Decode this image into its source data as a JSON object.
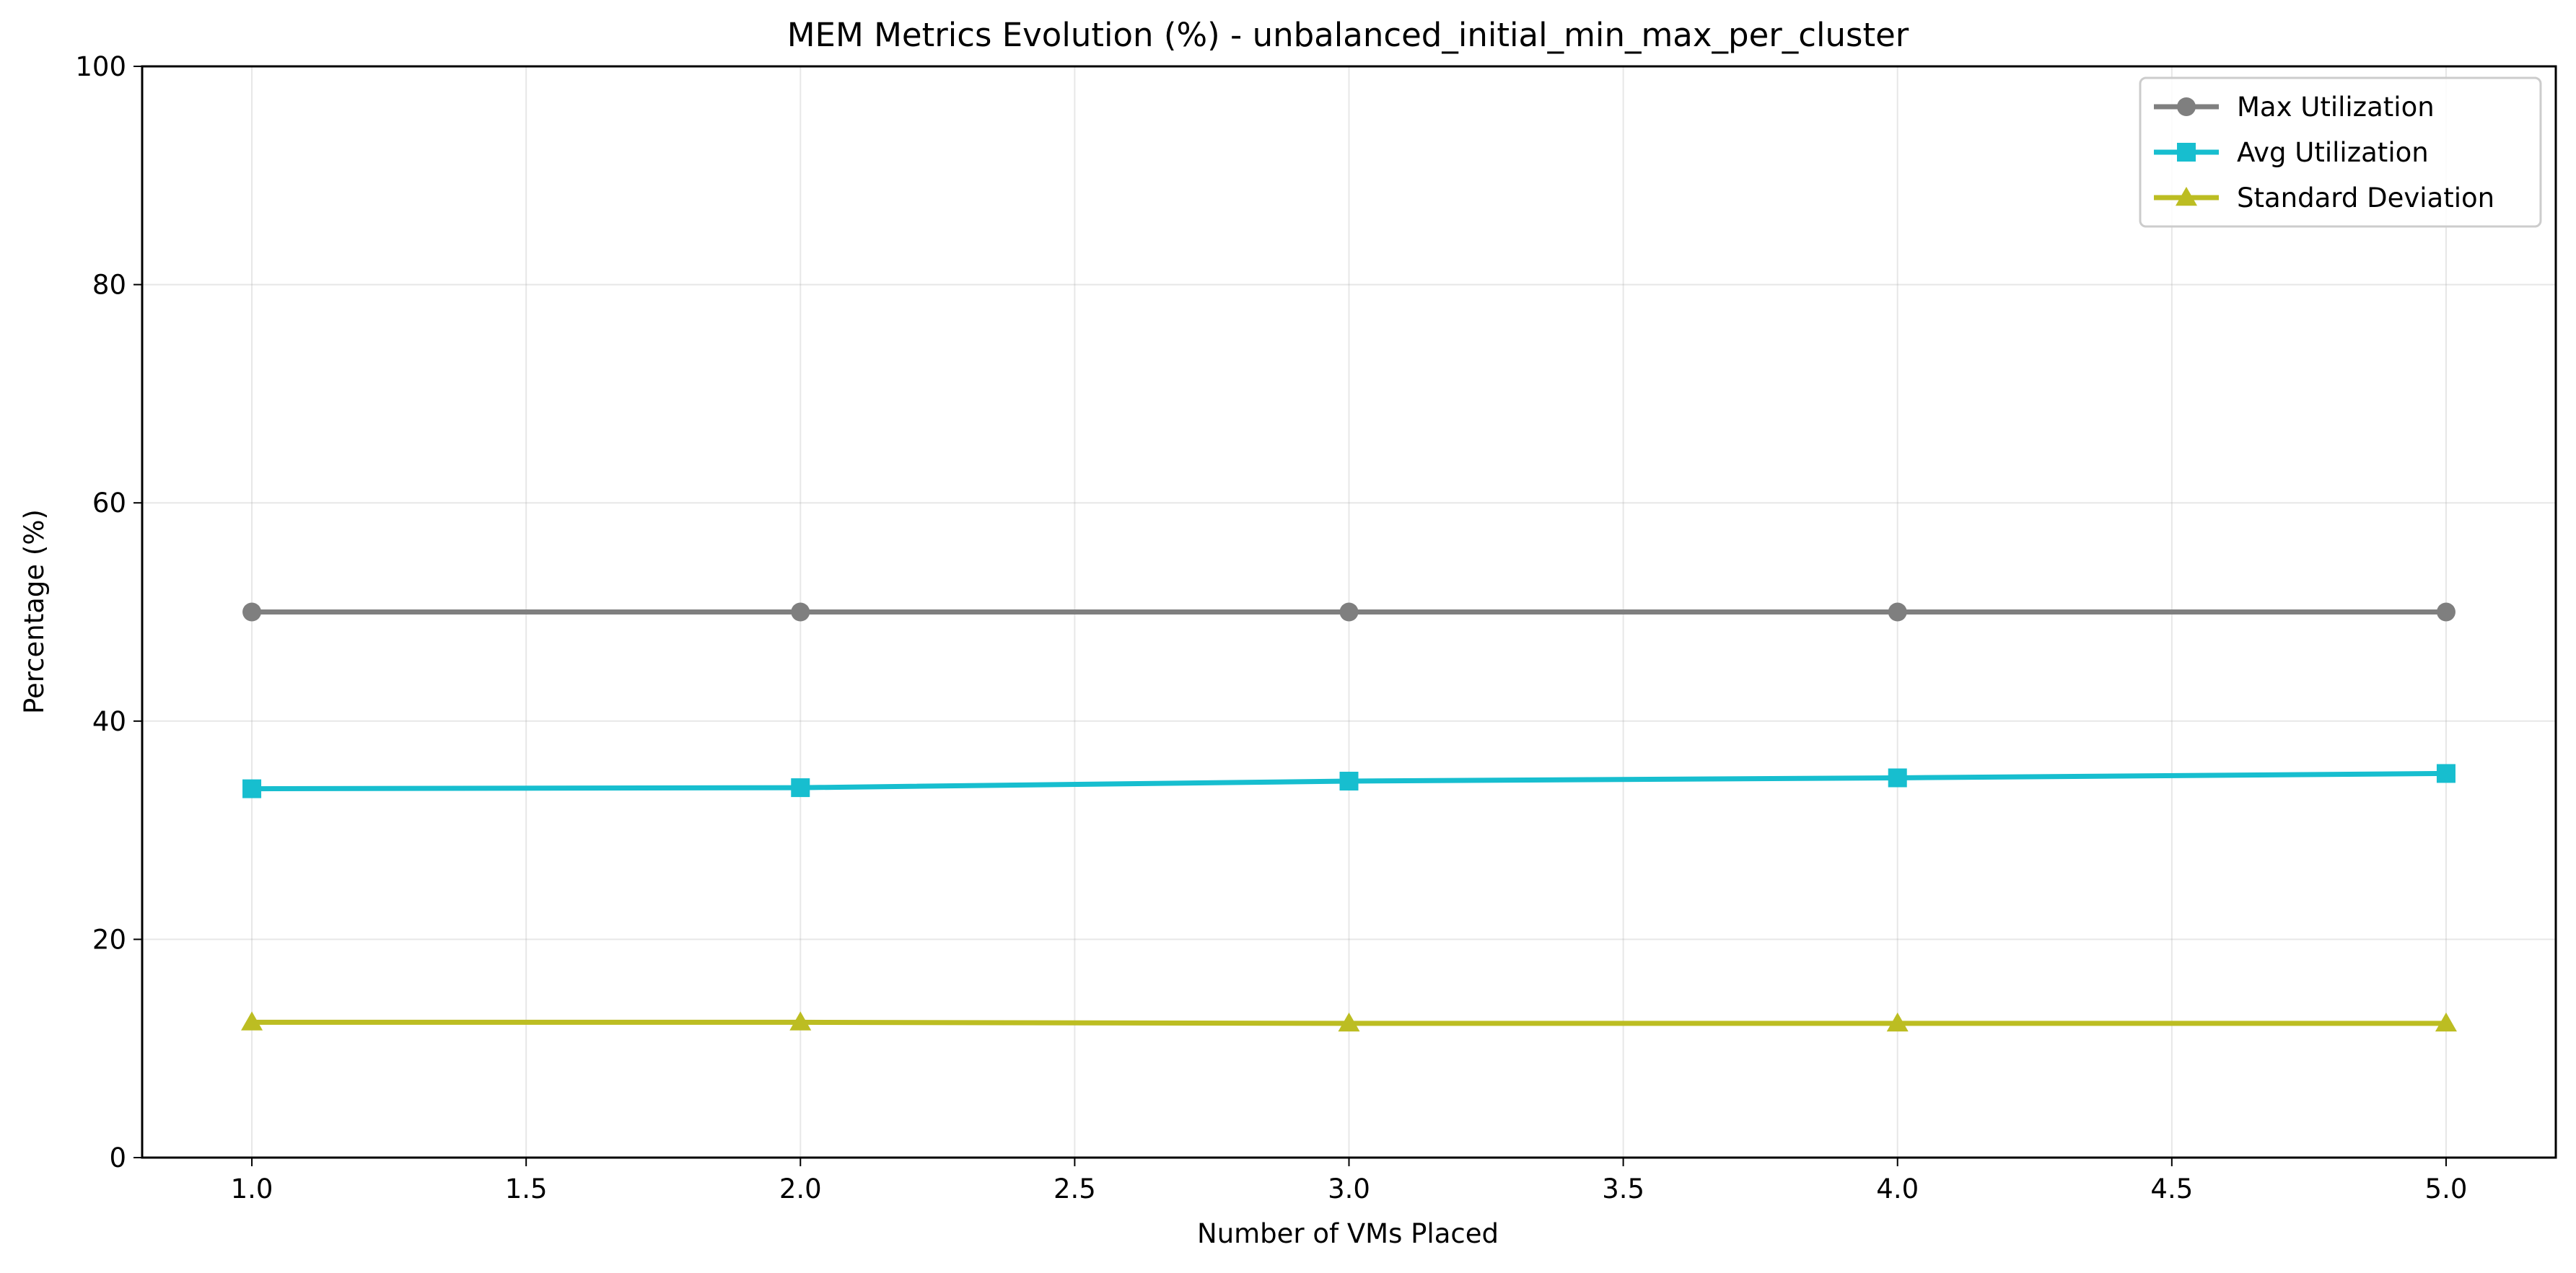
{
  "chart_data": {
    "type": "line",
    "title": "MEM Metrics Evolution (%) - unbalanced_initial_min_max_per_cluster",
    "xlabel": "Number of VMs Placed",
    "ylabel": "Percentage (%)",
    "x": [
      1.0,
      2.0,
      3.0,
      4.0,
      5.0
    ],
    "xlim": [
      0.8,
      5.2
    ],
    "ylim": [
      0,
      100
    ],
    "xticks": [
      "1.0",
      "1.5",
      "2.0",
      "2.5",
      "3.0",
      "3.5",
      "4.0",
      "4.5",
      "5.0"
    ],
    "yticks": [
      "0",
      "20",
      "40",
      "60",
      "80",
      "100"
    ],
    "grid": true,
    "legend_position": "top-right",
    "series": [
      {
        "name": "Max Utilization",
        "values": [
          50.0,
          50.0,
          50.0,
          50.0,
          50.0
        ],
        "color": "#7f7f7f",
        "marker": "circle"
      },
      {
        "name": "Avg Utilization",
        "values": [
          33.8,
          33.9,
          34.5,
          34.8,
          35.2
        ],
        "color": "#17becf",
        "marker": "square"
      },
      {
        "name": "Standard Deviation",
        "values": [
          12.4,
          12.4,
          12.3,
          12.3,
          12.3
        ],
        "color": "#bcbd22",
        "marker": "triangle"
      }
    ]
  }
}
